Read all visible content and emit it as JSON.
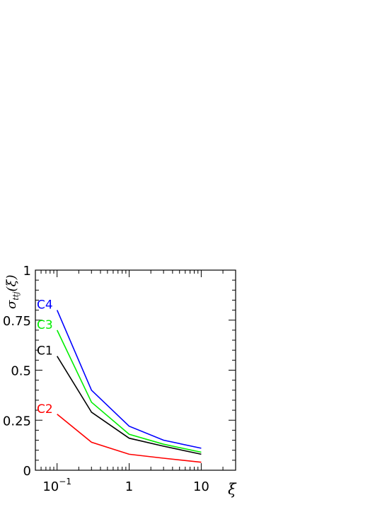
{
  "chart_data": {
    "type": "line",
    "title": "",
    "xlabel": "ξ",
    "ylabel": "σ",
    "ylabel_subscript": "ttj",
    "ylabel_suffix": "(ξ)",
    "xscale": "log",
    "xlim": [
      0.05,
      30
    ],
    "ylim": [
      0,
      1
    ],
    "grid": false,
    "x_ticks": [
      {
        "value": 0.1,
        "label": "10",
        "sup": "−1"
      },
      {
        "value": 1,
        "label": "1",
        "sup": ""
      },
      {
        "value": 10,
        "label": "10",
        "sup": ""
      }
    ],
    "y_ticks": [
      {
        "value": 0,
        "label": "0"
      },
      {
        "value": 0.25,
        "label": "0.25"
      },
      {
        "value": 0.5,
        "label": "0.5"
      },
      {
        "value": 0.75,
        "label": "0.75"
      },
      {
        "value": 1,
        "label": "1"
      }
    ],
    "x": [
      0.1,
      0.3,
      1,
      3,
      10
    ],
    "series": [
      {
        "name": "C4",
        "color": "#0000ff",
        "values": [
          0.8,
          0.4,
          0.22,
          0.15,
          0.11
        ]
      },
      {
        "name": "C3",
        "color": "#00ee00",
        "values": [
          0.7,
          0.34,
          0.18,
          0.13,
          0.09
        ]
      },
      {
        "name": "C1",
        "color": "#000000",
        "values": [
          0.57,
          0.29,
          0.16,
          0.12,
          0.08
        ]
      },
      {
        "name": "C2",
        "color": "#ff0000",
        "values": [
          0.28,
          0.14,
          0.08,
          0.06,
          0.04
        ]
      }
    ]
  }
}
